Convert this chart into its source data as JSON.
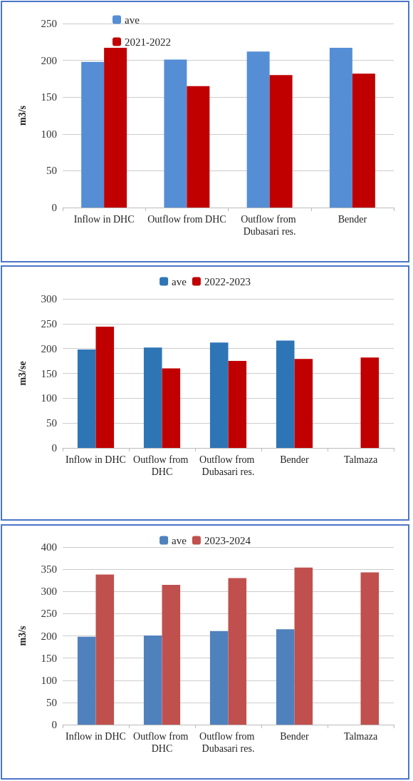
{
  "chart_data": [
    {
      "type": "bar",
      "categories": [
        "Inflow in DHC",
        "Outflow from DHC",
        "Outflow from Dubasari res.",
        "Bender"
      ],
      "ylabel": "m3/s",
      "ylim": [
        0,
        250
      ],
      "yticks": [
        0,
        50,
        100,
        150,
        200,
        250
      ],
      "grid": "y",
      "legend": "top left",
      "series": [
        {
          "name": "ave",
          "color": "#558ed5",
          "values": [
            198,
            201,
            212,
            217
          ]
        },
        {
          "name": "2021-2022",
          "color": "#c00000",
          "values": [
            217,
            165,
            180,
            182
          ]
        }
      ]
    },
    {
      "type": "bar",
      "categories": [
        "Inflow in DHC",
        "Outflow from DHC",
        "Outflow from Dubasari res.",
        "Bender",
        "Talmaza"
      ],
      "ylabel": "m3/se",
      "ylim": [
        0,
        300
      ],
      "yticks": [
        0,
        50,
        100,
        150,
        200,
        250,
        300
      ],
      "grid": "y",
      "legend": "top",
      "series": [
        {
          "name": "ave",
          "color": "#2e75b6",
          "values": [
            198,
            202,
            212,
            216,
            null
          ]
        },
        {
          "name": "2022-2023",
          "color": "#c00000",
          "values": [
            244,
            160,
            175,
            179,
            182
          ]
        }
      ]
    },
    {
      "type": "bar",
      "categories": [
        "Inflow in DHC",
        "Outflow from DHC",
        "Outflow from Dubasari res.",
        "Bender",
        "Talmaza"
      ],
      "ylabel": "m3/s",
      "ylim": [
        0,
        400
      ],
      "yticks": [
        0,
        50,
        100,
        150,
        200,
        250,
        300,
        350,
        400
      ],
      "grid": "y",
      "legend": "top",
      "series": [
        {
          "name": "ave",
          "color": "#4f81bd",
          "values": [
            198,
            201,
            211,
            215,
            null
          ]
        },
        {
          "name": "2023-2024",
          "color": "#c0504d",
          "values": [
            338,
            315,
            330,
            354,
            343
          ]
        }
      ]
    }
  ]
}
